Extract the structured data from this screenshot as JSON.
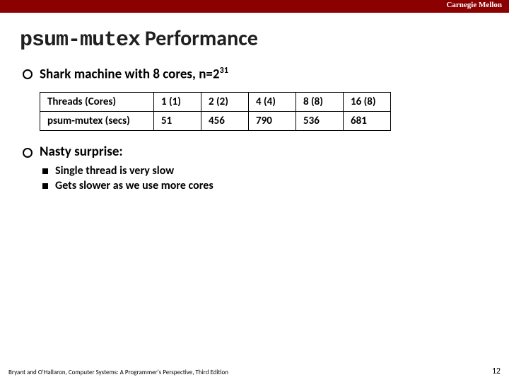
{
  "header": {
    "university": "Carnegie Mellon",
    "bar_color": "#8b0000"
  },
  "title": {
    "mono": "psum-mutex",
    "rest": " Performance"
  },
  "bullet1_prefix": "Shark machine with 8 cores,  n=2",
  "bullet1_exp": "31",
  "table": {
    "columns": [
      "Threads (Cores)",
      "1 (1)",
      "2 (2)",
      "4 (4)",
      "8 (8)",
      "16 (8)"
    ],
    "row_label": "psum-mutex (secs)",
    "row_values": [
      "51",
      "456",
      "790",
      "536",
      "681"
    ]
  },
  "bullet2": "Nasty surprise:",
  "sub1": "Single thread is very slow",
  "sub2": "Gets slower as we use more cores",
  "footer": {
    "citation": "Bryant and O'Hallaron, Computer Systems: A Programmer's Perspective, Third Edition",
    "page": "12"
  }
}
